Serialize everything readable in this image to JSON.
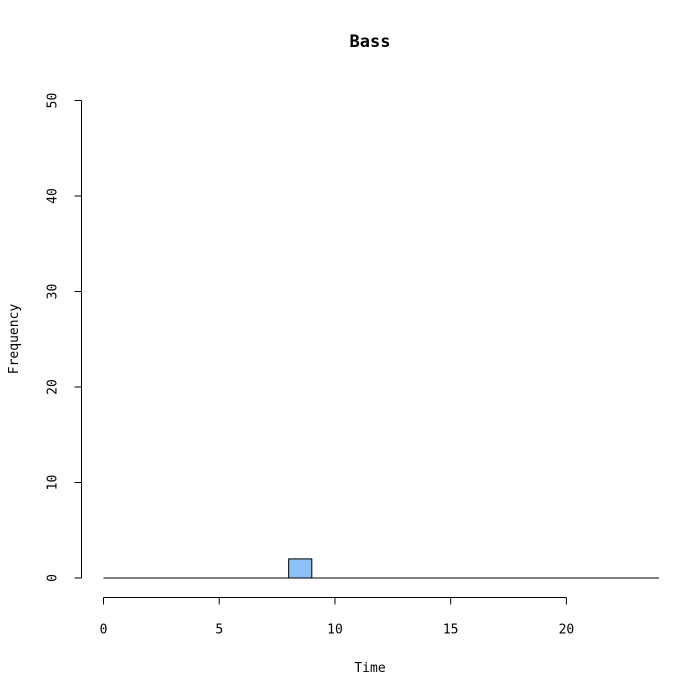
{
  "chart_data": {
    "type": "bar",
    "title": "Bass",
    "xlabel": "Time",
    "ylabel": "Frequency",
    "xlim": [
      0,
      24
    ],
    "ylim": [
      0,
      50
    ],
    "x_ticks": [
      0,
      5,
      10,
      15,
      20
    ],
    "y_ticks": [
      0,
      10,
      20,
      30,
      40,
      50
    ],
    "bin_width": 1,
    "bins": [
      {
        "x_start": 8,
        "x_end": 9,
        "count": 2
      }
    ],
    "bar_color": "#8bc1f7",
    "grid": false,
    "legend": "none"
  }
}
